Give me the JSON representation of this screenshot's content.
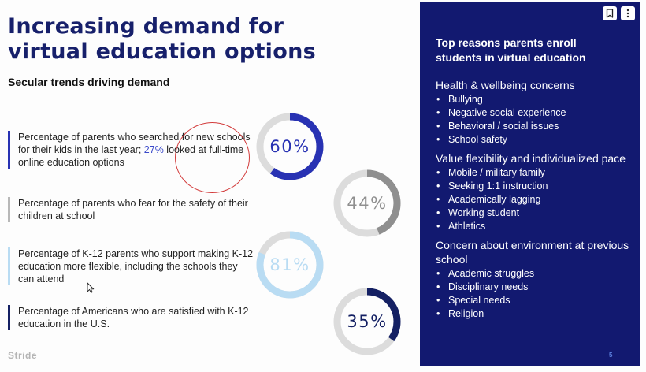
{
  "slide": {
    "title_line1": "Increasing demand for",
    "title_line2": "virtual education options",
    "subtitle": "Secular trends driving demand",
    "logo": "Stride"
  },
  "stats": [
    {
      "text_before": "Percentage of parents who searched for new schools for their kids in the last year; ",
      "highlight": "27%",
      "text_after": " looked at full-time online education options",
      "percent_label": "60%",
      "fraction": 0.6,
      "color": "#2832b3"
    },
    {
      "text": "Percentage of parents who fear for the safety of their children at school",
      "percent_label": "44%",
      "fraction": 0.44,
      "color": "#8f8f8f"
    },
    {
      "text": "Percentage of K-12 parents who support making K-12 education more flexible, including the schools they can attend",
      "percent_label": "81%",
      "fraction": 0.81,
      "color": "#b9dcf3"
    },
    {
      "text": "Percentage of Americans who are satisfied with K-12 education in the U.S.",
      "percent_label": "35%",
      "fraction": 0.35,
      "color": "#142063"
    }
  ],
  "ring_track_color": "#dcdcdc",
  "panel": {
    "title": "Top reasons parents enroll students in virtual education",
    "groups": [
      {
        "heading": "Health & wellbeing concerns",
        "items": [
          "Bullying",
          "Negative social experience",
          "Behavioral / social issues",
          "School safety"
        ]
      },
      {
        "heading": "Value flexibility and individualized pace",
        "items": [
          "Mobile / military family",
          "Seeking 1:1 instruction",
          "Academically lagging",
          "Working student",
          "Athletics"
        ]
      },
      {
        "heading": "Concern about environment at previous school",
        "items": [
          "Academic struggles",
          "Disciplinary needs",
          "Special needs",
          "Religion"
        ]
      }
    ],
    "page_number": "5",
    "icons": [
      "bookmark-icon",
      "more-vertical-icon"
    ]
  }
}
